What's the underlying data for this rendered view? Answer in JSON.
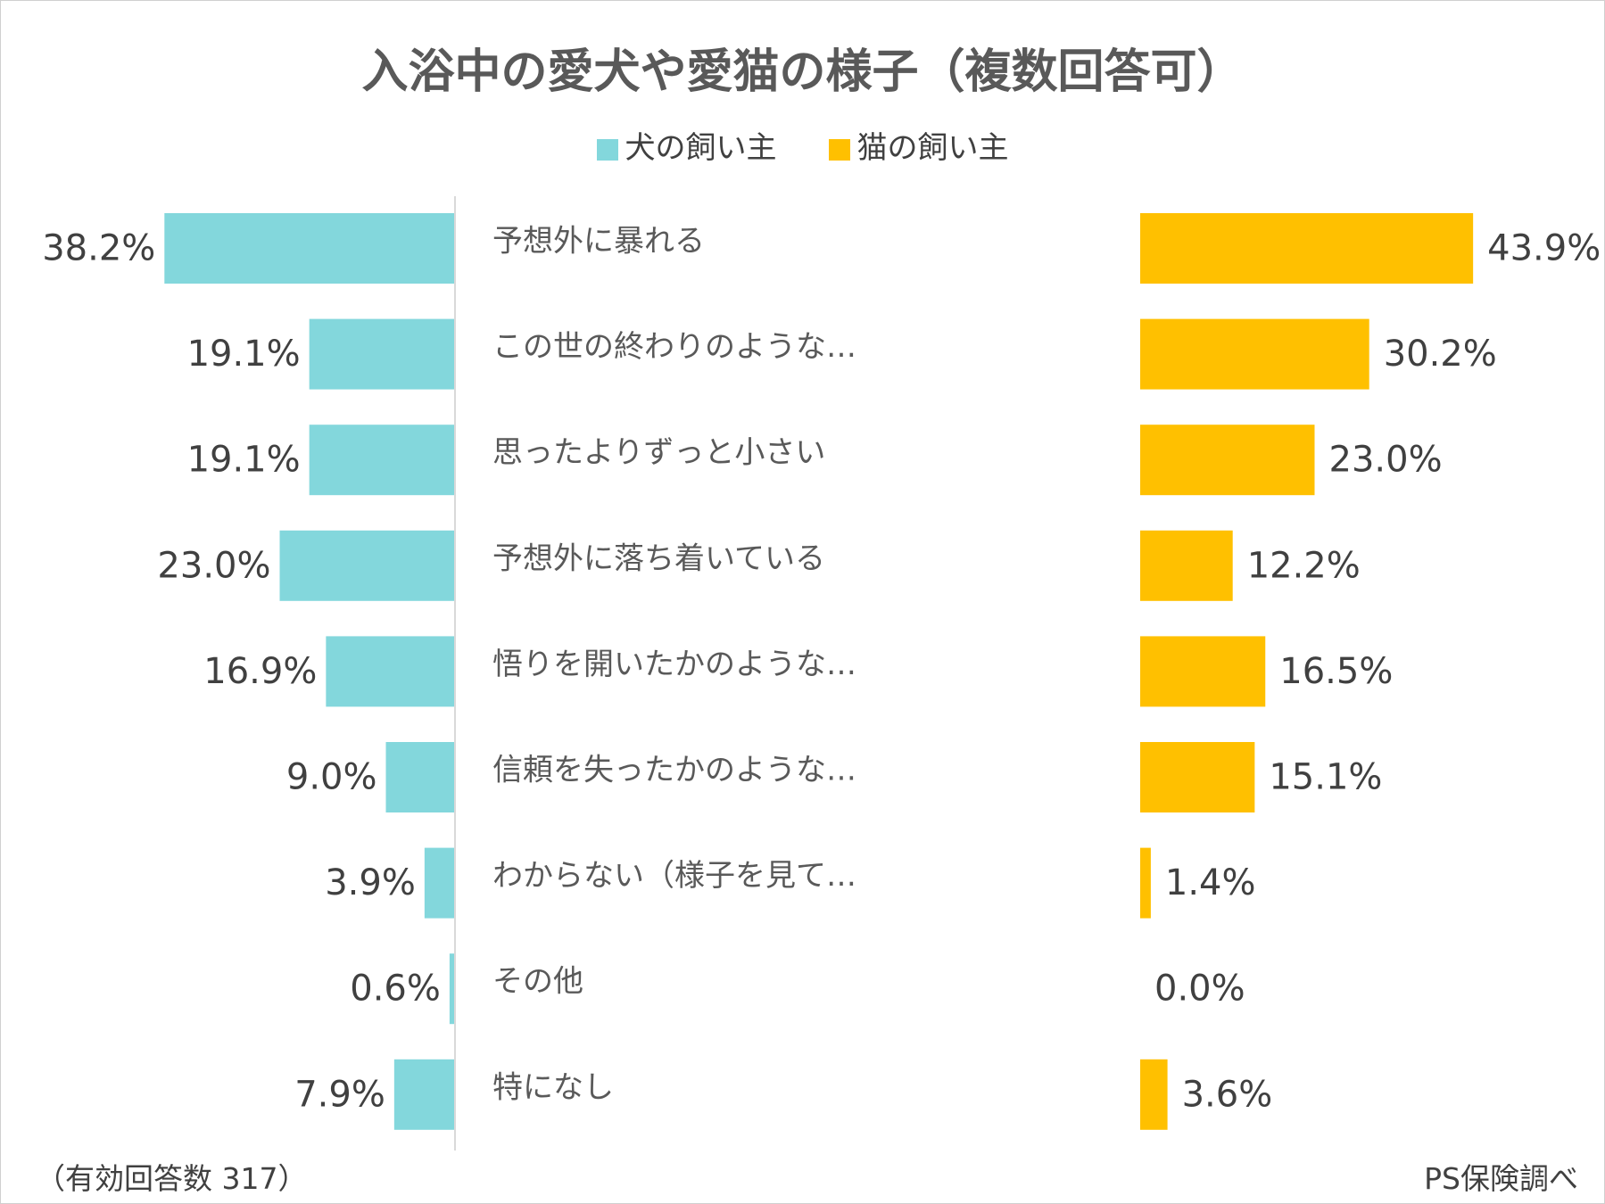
{
  "chart_data": {
    "type": "bar",
    "title": "入浴中の愛犬や愛猫の様子（複数回答可）",
    "categories": [
      "予想外に暴れる",
      "この世の終わりのような…",
      "思ったよりずっと小さい",
      "予想外に落ち着いている",
      "悟りを開いたかのような…",
      "信頼を失ったかのような…",
      "わからない（様子を見て…",
      "その他",
      "特になし"
    ],
    "series": [
      {
        "name": "犬の飼い主",
        "color": "#83d7dc",
        "values": [
          38.2,
          19.1,
          19.1,
          23.0,
          16.9,
          9.0,
          3.9,
          0.6,
          7.9
        ],
        "labels": [
          "38.2%",
          "19.1%",
          "19.1%",
          "23.0%",
          "16.9%",
          "9.0%",
          "3.9%",
          "0.6%",
          "7.9%"
        ]
      },
      {
        "name": "猫の飼い主",
        "color": "#ffc000",
        "values": [
          43.9,
          30.2,
          23.0,
          12.2,
          16.5,
          15.1,
          1.4,
          0.0,
          3.6
        ],
        "labels": [
          "43.9%",
          "30.2%",
          "23.0%",
          "12.2%",
          "16.5%",
          "15.1%",
          "1.4%",
          "0.0%",
          "3.6%"
        ]
      }
    ],
    "legend_position": "top-center",
    "grid": false
  },
  "notes": {
    "sample": "（有効回答数 317）",
    "source": "PS保険調べ"
  }
}
